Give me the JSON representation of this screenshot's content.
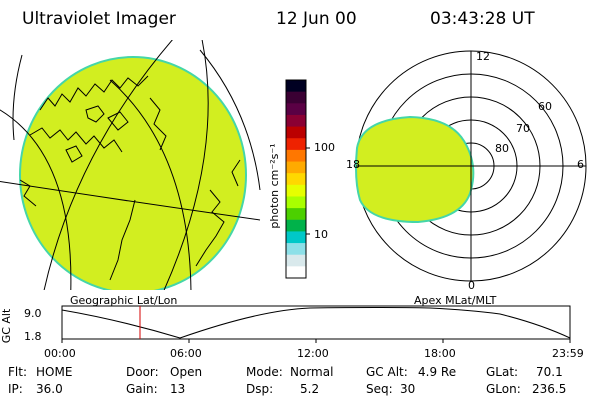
{
  "header": {
    "title": "Ultraviolet Imager",
    "date": "12 Jun 00",
    "time": "03:43:28 UT"
  },
  "geo_map": {
    "label": "Geographic Lat/Lon"
  },
  "colorbar": {
    "unit_label": "photon cm⁻²s⁻¹",
    "tick_high": "100",
    "tick_low": "10",
    "colors": [
      "#000022",
      "#3a0033",
      "#5a0044",
      "#8a0033",
      "#bb0000",
      "#ee2200",
      "#ff7700",
      "#ffaa00",
      "#ffd800",
      "#e6ff00",
      "#a9ff00",
      "#4cd000",
      "#00b24a",
      "#00c8c8",
      "#8de0e8",
      "#d9e9ec",
      "#ffffff"
    ]
  },
  "polar_plot": {
    "label": "Apex MLat/MLT",
    "mlt_labels": {
      "top": "12",
      "left": "18",
      "right": "6",
      "bottom": "0"
    },
    "mlat_labels": [
      "60",
      "70",
      "80"
    ]
  },
  "altitude_plot": {
    "ylabel": "GC Alt",
    "y_ticks": [
      "9.0",
      "1.8"
    ],
    "x_ticks": [
      "00:00",
      "06:00",
      "12:00",
      "18:00",
      "23:59"
    ],
    "marker_time": "03:43:28"
  },
  "footer": {
    "row1": {
      "flt_label": "Flt:",
      "flt_value": "HOME",
      "door_label": "Door:",
      "door_value": "Open",
      "mode_label": "Mode:",
      "mode_value": "Normal",
      "gcalt_label": "GC Alt:",
      "gcalt_value": "4.9 Re",
      "glat_label": "GLat:",
      "glat_value": "70.1"
    },
    "row2": {
      "ip_label": "IP:",
      "ip_value": "36.0",
      "gain_label": "Gain:",
      "gain_value": "13",
      "dsp_label": "Dsp:",
      "dsp_value": "5.2",
      "seq_label": "Seq:",
      "seq_value": "30",
      "glon_label": "GLon:",
      "glon_value": "236.5"
    }
  },
  "colors": {
    "aurora_fill": "#d2ee20",
    "aurora_edge": "#45d6a8"
  }
}
